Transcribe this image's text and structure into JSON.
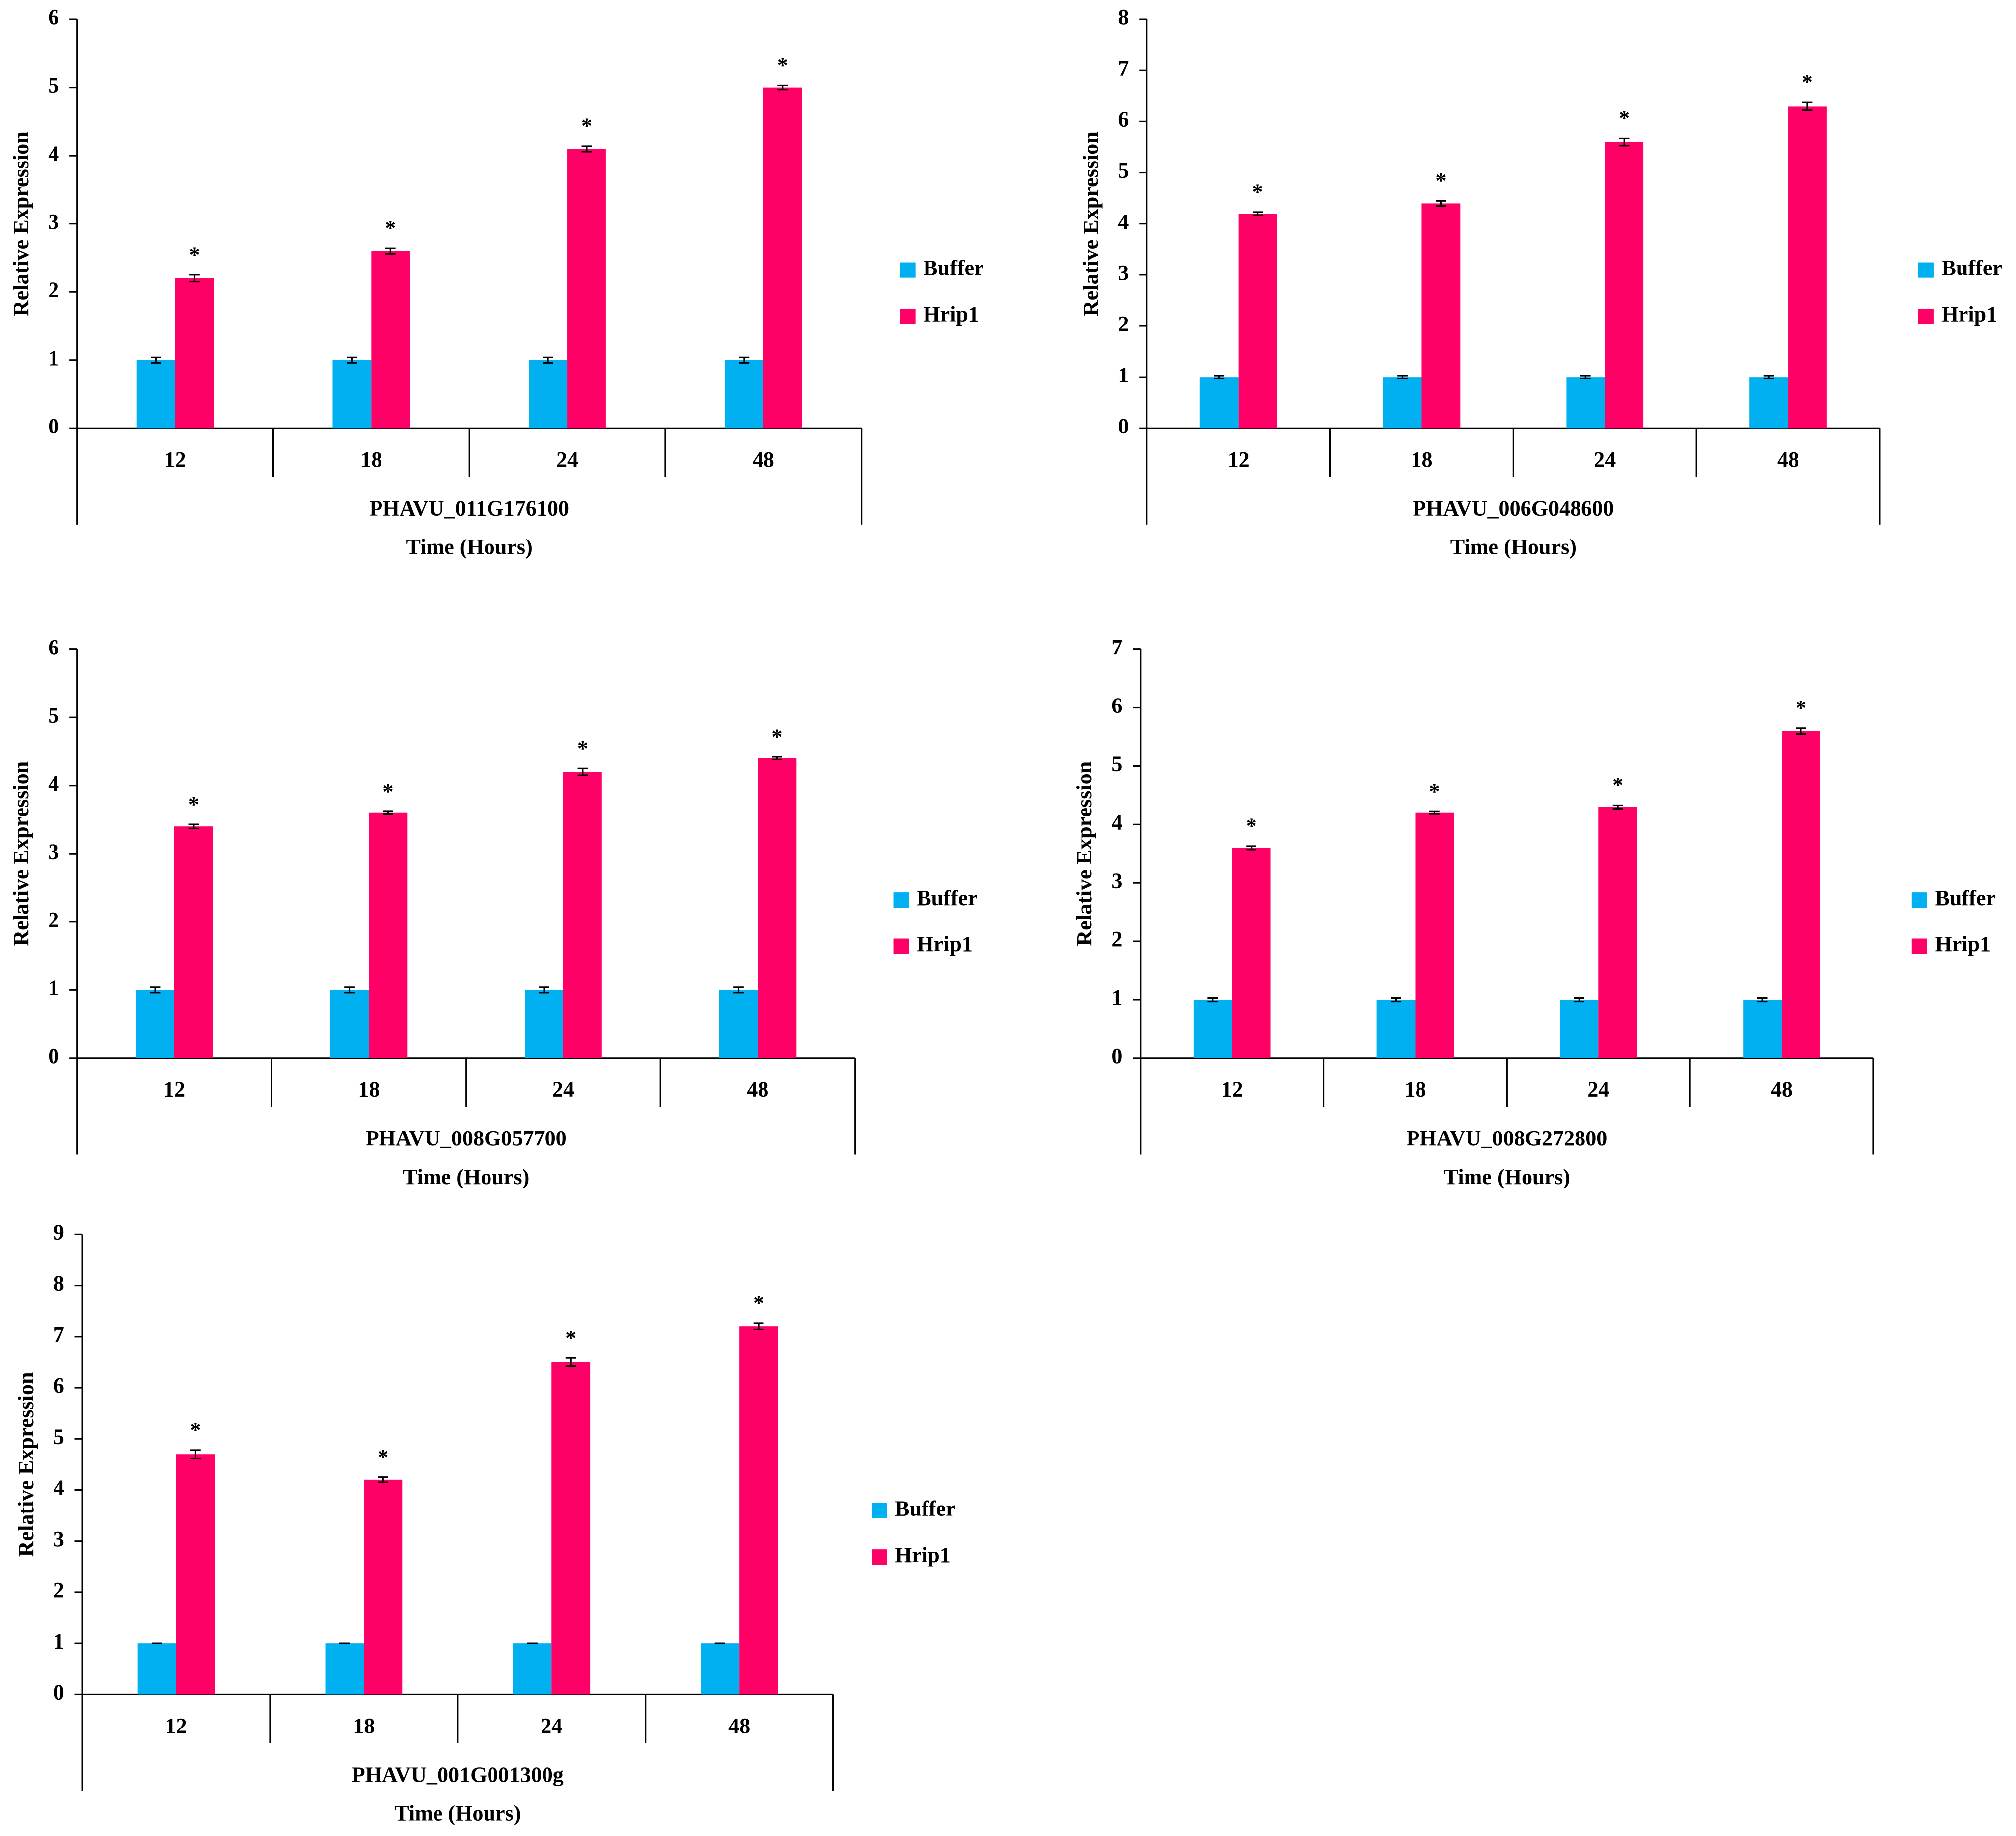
{
  "chart_data": [
    {
      "type": "bar",
      "group_label": "PHAVU_011G176100",
      "x_label": "Time (Hours)",
      "y_label": "Relative Expression",
      "categories": [
        "12",
        "18",
        "24",
        "48"
      ],
      "ylim": [
        0,
        6
      ],
      "yticks": [
        0,
        1,
        2,
        3,
        4,
        5,
        6
      ],
      "series": [
        {
          "name": "Buffer",
          "color": "#00b0f0",
          "values": [
            1,
            1,
            1,
            1
          ],
          "errors": [
            0.04,
            0.04,
            0.04,
            0.04
          ]
        },
        {
          "name": "Hrip1",
          "color": "#ff0066",
          "values": [
            2.2,
            2.6,
            4.1,
            5.0
          ],
          "errors": [
            0.05,
            0.04,
            0.04,
            0.03
          ],
          "annotations": [
            "*",
            "*",
            "*",
            "*"
          ]
        }
      ]
    },
    {
      "type": "bar",
      "group_label": "PHAVU_006G048600",
      "x_label": "Time (Hours)",
      "y_label": "Relative Expression",
      "categories": [
        "12",
        "18",
        "24",
        "48"
      ],
      "ylim": [
        0,
        8
      ],
      "yticks": [
        0,
        1,
        2,
        3,
        4,
        5,
        6,
        7,
        8
      ],
      "series": [
        {
          "name": "Buffer",
          "color": "#00b0f0",
          "values": [
            1,
            1,
            1,
            1
          ],
          "errors": [
            0.03,
            0.03,
            0.03,
            0.03
          ]
        },
        {
          "name": "Hrip1",
          "color": "#ff0066",
          "values": [
            4.2,
            4.4,
            5.6,
            6.3
          ],
          "errors": [
            0.03,
            0.05,
            0.07,
            0.08
          ],
          "annotations": [
            "*",
            "*",
            "*",
            "*"
          ]
        }
      ]
    },
    {
      "type": "bar",
      "group_label": "PHAVU_008G057700",
      "x_label": "Time (Hours)",
      "y_label": "Relative Expression",
      "categories": [
        "12",
        "18",
        "24",
        "48"
      ],
      "ylim": [
        0,
        6
      ],
      "yticks": [
        0,
        1,
        2,
        3,
        4,
        5,
        6
      ],
      "series": [
        {
          "name": "Buffer",
          "color": "#00b0f0",
          "values": [
            1,
            1,
            1,
            1
          ],
          "errors": [
            0.04,
            0.04,
            0.04,
            0.04
          ]
        },
        {
          "name": "Hrip1",
          "color": "#ff0066",
          "values": [
            3.4,
            3.6,
            4.2,
            4.4
          ],
          "errors": [
            0.03,
            0.02,
            0.05,
            0.02
          ],
          "annotations": [
            "*",
            "*",
            "*",
            "*"
          ]
        }
      ]
    },
    {
      "type": "bar",
      "group_label": "PHAVU_008G272800",
      "x_label": "Time (Hours)",
      "y_label": "Relative Expression",
      "categories": [
        "12",
        "18",
        "24",
        "48"
      ],
      "ylim": [
        0,
        7
      ],
      "yticks": [
        0,
        1,
        2,
        3,
        4,
        5,
        6,
        7
      ],
      "series": [
        {
          "name": "Buffer",
          "color": "#00b0f0",
          "values": [
            1,
            1,
            1,
            1
          ],
          "errors": [
            0.03,
            0.03,
            0.03,
            0.03
          ]
        },
        {
          "name": "Hrip1",
          "color": "#ff0066",
          "values": [
            3.6,
            4.2,
            4.3,
            5.6
          ],
          "errors": [
            0.03,
            0.02,
            0.03,
            0.05
          ],
          "annotations": [
            "*",
            "*",
            "*",
            "*"
          ]
        }
      ]
    },
    {
      "type": "bar",
      "group_label": "PHAVU_001G001300g",
      "x_label": "Time (Hours)",
      "y_label": "Relative Expression",
      "categories": [
        "12",
        "18",
        "24",
        "48"
      ],
      "ylim": [
        0,
        9
      ],
      "yticks": [
        0,
        1,
        2,
        3,
        4,
        5,
        6,
        7,
        8,
        9
      ],
      "series": [
        {
          "name": "Buffer",
          "color": "#00b0f0",
          "values": [
            1,
            1,
            1,
            1
          ],
          "errors": [
            0,
            0,
            0,
            0
          ]
        },
        {
          "name": "Hrip1",
          "color": "#ff0066",
          "values": [
            4.7,
            4.2,
            6.5,
            7.2
          ],
          "errors": [
            0.08,
            0.05,
            0.08,
            0.06
          ],
          "annotations": [
            "*",
            "*",
            "*",
            "*"
          ]
        }
      ]
    }
  ]
}
